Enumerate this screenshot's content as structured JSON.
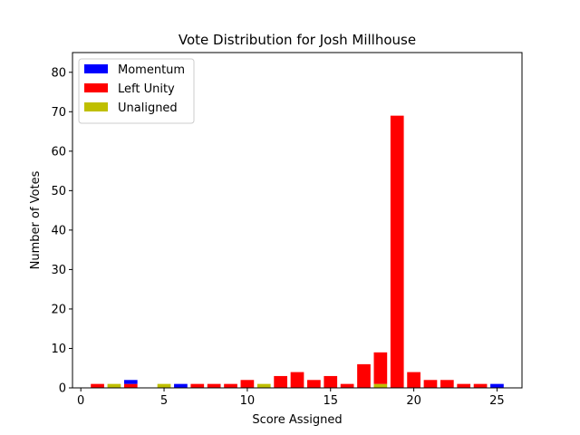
{
  "chart_data": {
    "type": "bar",
    "stacked": true,
    "title": "Vote Distribution for Josh Millhouse",
    "xlabel": "Score Assigned",
    "ylabel": "Number of Votes",
    "xlim": [
      -0.5,
      26.5
    ],
    "ylim": [
      0,
      85
    ],
    "xticks": [
      0,
      5,
      10,
      15,
      20,
      25
    ],
    "yticks": [
      0,
      10,
      20,
      30,
      40,
      50,
      60,
      70,
      80
    ],
    "grid": false,
    "legend_position": "top-left",
    "x": [
      1,
      2,
      3,
      5,
      6,
      7,
      8,
      9,
      10,
      11,
      12,
      13,
      14,
      15,
      16,
      17,
      18,
      19,
      20,
      21,
      22,
      23,
      24,
      25
    ],
    "series": [
      {
        "name": "Unaligned",
        "color": "#bfbf00",
        "values": [
          0,
          1,
          0,
          1,
          0,
          0,
          0,
          0,
          0,
          1,
          0,
          0,
          0,
          0,
          0,
          0,
          1,
          0,
          0,
          0,
          0,
          0,
          0,
          0
        ]
      },
      {
        "name": "Left Unity",
        "color": "#ff0000",
        "values": [
          1,
          0,
          1,
          0,
          0,
          1,
          1,
          1,
          2,
          0,
          3,
          4,
          2,
          3,
          1,
          6,
          8,
          69,
          4,
          2,
          2,
          1,
          1,
          0
        ]
      },
      {
        "name": "Momentum",
        "color": "#0000ff",
        "values": [
          0,
          0,
          1,
          0,
          1,
          0,
          0,
          0,
          0,
          0,
          0,
          0,
          0,
          0,
          0,
          0,
          0,
          0,
          0,
          0,
          0,
          0,
          0,
          1
        ]
      }
    ],
    "legend_order": [
      "Momentum",
      "Left Unity",
      "Unaligned"
    ]
  }
}
